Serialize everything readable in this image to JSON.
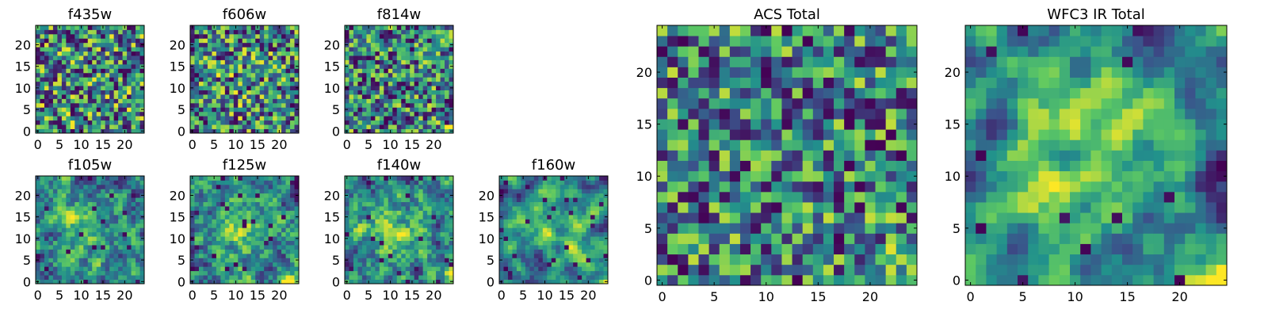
{
  "figure": {
    "background": "#ffffff",
    "colormap": "viridis",
    "colormap_stops": [
      "#440154",
      "#3b528b",
      "#21918c",
      "#5ec962",
      "#fde725"
    ]
  },
  "chart_data": [
    {
      "type": "heatmap",
      "title": "f435w",
      "grid_size": 25,
      "seed": 11,
      "smooth": 0,
      "bias": "none",
      "bias_strength": 0,
      "dark_fraction": 0.05,
      "xticks": [
        "0",
        "5",
        "10",
        "15",
        "20"
      ],
      "yticks": [
        "0",
        "5",
        "10",
        "15",
        "20"
      ],
      "xlim": [
        -0.5,
        24.5
      ],
      "ylim": [
        -0.5,
        24.5
      ],
      "value_range": [
        0,
        1
      ]
    },
    {
      "type": "heatmap",
      "title": "f606w",
      "grid_size": 25,
      "seed": 23,
      "smooth": 0,
      "bias": "center",
      "bias_strength": 0.12,
      "dark_fraction": 0.05,
      "xticks": [
        "0",
        "5",
        "10",
        "15",
        "20"
      ],
      "yticks": [
        "0",
        "5",
        "10",
        "15",
        "20"
      ],
      "xlim": [
        -0.5,
        24.5
      ],
      "ylim": [
        -0.5,
        24.5
      ],
      "value_range": [
        0,
        1
      ]
    },
    {
      "type": "heatmap",
      "title": "f814w",
      "grid_size": 25,
      "seed": 37,
      "smooth": 0,
      "bias": "bottom-right",
      "bias_strength": 0.15,
      "dark_fraction": 0.05,
      "xticks": [
        "0",
        "5",
        "10",
        "15",
        "20"
      ],
      "yticks": [
        "0",
        "5",
        "10",
        "15",
        "20"
      ],
      "xlim": [
        -0.5,
        24.5
      ],
      "ylim": [
        -0.5,
        24.5
      ],
      "value_range": [
        0,
        1
      ]
    },
    {
      "type": "heatmap",
      "title": "f105w",
      "grid_size": 25,
      "seed": 41,
      "smooth": 1,
      "bias": "center+bottom-right",
      "bias_strength": 0.3,
      "dark_fraction": 0.04,
      "xticks": [
        "0",
        "5",
        "10",
        "15",
        "20"
      ],
      "yticks": [
        "0",
        "5",
        "10",
        "15",
        "20"
      ],
      "xlim": [
        -0.5,
        24.5
      ],
      "ylim": [
        -0.5,
        24.5
      ],
      "value_range": [
        0,
        1
      ]
    },
    {
      "type": "heatmap",
      "title": "f125w",
      "grid_size": 25,
      "seed": 53,
      "smooth": 1,
      "bias": "center+bottom-right",
      "bias_strength": 0.3,
      "dark_fraction": 0.04,
      "xticks": [
        "0",
        "5",
        "10",
        "15",
        "20"
      ],
      "yticks": [
        "0",
        "5",
        "10",
        "15",
        "20"
      ],
      "xlim": [
        -0.5,
        24.5
      ],
      "ylim": [
        -0.5,
        24.5
      ],
      "value_range": [
        0,
        1
      ]
    },
    {
      "type": "heatmap",
      "title": "f140w",
      "grid_size": 25,
      "seed": 67,
      "smooth": 1,
      "bias": "center+bottom-right",
      "bias_strength": 0.3,
      "dark_fraction": 0.04,
      "xticks": [
        "0",
        "5",
        "10",
        "15",
        "20"
      ],
      "yticks": [
        "0",
        "5",
        "10",
        "15",
        "20"
      ],
      "xlim": [
        -0.5,
        24.5
      ],
      "ylim": [
        -0.5,
        24.5
      ],
      "value_range": [
        0,
        1
      ]
    },
    {
      "type": "heatmap",
      "title": "f160w",
      "grid_size": 25,
      "seed": 79,
      "smooth": 2,
      "bias": "center+bottom-right",
      "bias_strength": 0.3,
      "dark_fraction": 0.04,
      "xticks": [
        "0",
        "5",
        "10",
        "15",
        "20"
      ],
      "yticks": [
        "0",
        "5",
        "10",
        "15",
        "20"
      ],
      "xlim": [
        -0.5,
        24.5
      ],
      "ylim": [
        -0.5,
        24.5
      ],
      "value_range": [
        0,
        1
      ]
    },
    {
      "type": "heatmap",
      "title": "ACS Total",
      "grid_size": 25,
      "seed": 97,
      "smooth": 0,
      "bias": "bottom-right",
      "bias_strength": 0.18,
      "dark_fraction": 0.035,
      "xticks": [
        "0",
        "5",
        "10",
        "15",
        "20"
      ],
      "yticks": [
        "0",
        "5",
        "10",
        "15",
        "20"
      ],
      "xlim": [
        -0.5,
        24.5
      ],
      "ylim": [
        -0.5,
        24.5
      ],
      "value_range": [
        0,
        1
      ]
    },
    {
      "type": "heatmap",
      "title": "WFC3 IR Total",
      "grid_size": 25,
      "seed": 113,
      "smooth": 2,
      "bias": "center+bottom-right",
      "bias_strength": 0.4,
      "dark_fraction": 0.03,
      "xticks": [
        "0",
        "5",
        "10",
        "15",
        "20"
      ],
      "yticks": [
        "0",
        "5",
        "10",
        "15",
        "20"
      ],
      "xlim": [
        -0.5,
        24.5
      ],
      "ylim": [
        -0.5,
        24.5
      ],
      "value_range": [
        0,
        1
      ]
    }
  ]
}
